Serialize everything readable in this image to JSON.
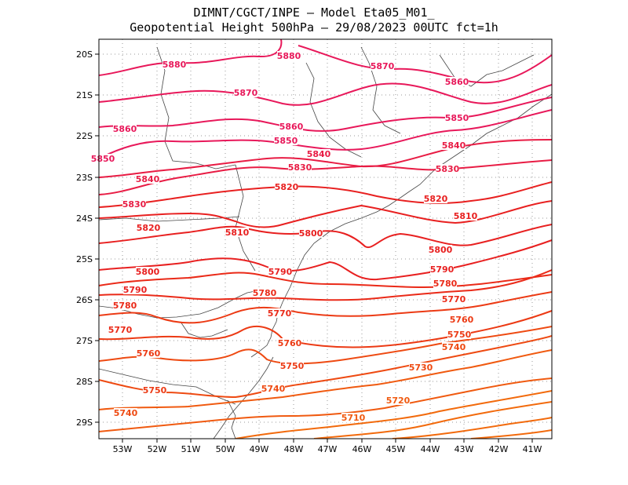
{
  "header": {
    "line1": "DIMNT/CGCT/INPE –  Model Eta05_M01_",
    "line2": "Geopotential Height 500hPa –  29/08/2023 00UTC fct=1h"
  },
  "axes": {
    "lon_labels": [
      "53W",
      "52W",
      "51W",
      "50W",
      "49W",
      "48W",
      "47W",
      "46W",
      "45W",
      "44W",
      "43W",
      "42W",
      "41W"
    ],
    "lat_labels": [
      "20S",
      "21S",
      "22S",
      "23S",
      "24S",
      "25S",
      "26S",
      "27S",
      "28S",
      "29S"
    ]
  },
  "contours": [
    {
      "value": 5880,
      "color": "#e8185a",
      "labels": [
        "5880",
        "5880"
      ]
    },
    {
      "value": 5870,
      "color": "#e8185a",
      "labels": [
        "5870",
        "5870"
      ]
    },
    {
      "value": 5860,
      "color": "#e8185a",
      "labels": [
        "5860",
        "5860",
        "5860"
      ]
    },
    {
      "value": 5850,
      "color": "#e8185a",
      "labels": [
        "5850",
        "5850",
        "5850"
      ]
    },
    {
      "value": 5840,
      "color": "#e81c44",
      "labels": [
        "5840",
        "5840",
        "5840"
      ]
    },
    {
      "value": 5830,
      "color": "#e81c44",
      "labels": [
        "5830",
        "5830",
        "5830"
      ]
    },
    {
      "value": 5820,
      "color": "#e82020",
      "labels": [
        "5820",
        "5820",
        "5820"
      ]
    },
    {
      "value": 5810,
      "color": "#e82020",
      "labels": [
        "5810",
        "5810"
      ]
    },
    {
      "value": 5800,
      "color": "#e82020",
      "labels": [
        "5800",
        "5800",
        "5800"
      ]
    },
    {
      "value": 5790,
      "color": "#e82020",
      "labels": [
        "5790",
        "5790",
        "5790"
      ]
    },
    {
      "value": 5780,
      "color": "#ea2a18",
      "labels": [
        "5780",
        "5780",
        "5780"
      ]
    },
    {
      "value": 5770,
      "color": "#ea2a18",
      "labels": [
        "5770",
        "5770",
        "5770"
      ]
    },
    {
      "value": 5760,
      "color": "#ec3a14",
      "labels": [
        "5760",
        "5760",
        "5760"
      ]
    },
    {
      "value": 5750,
      "color": "#ec3a14",
      "labels": [
        "5750",
        "5750",
        "5750"
      ]
    },
    {
      "value": 5740,
      "color": "#ee4a12",
      "labels": [
        "5740",
        "5740",
        "5740"
      ]
    },
    {
      "value": 5730,
      "color": "#ee4a12",
      "labels": [
        "5730"
      ]
    },
    {
      "value": 5720,
      "color": "#f05a10",
      "labels": [
        "5720"
      ]
    },
    {
      "value": 5710,
      "color": "#f05a10",
      "labels": [
        "5710"
      ]
    }
  ]
}
